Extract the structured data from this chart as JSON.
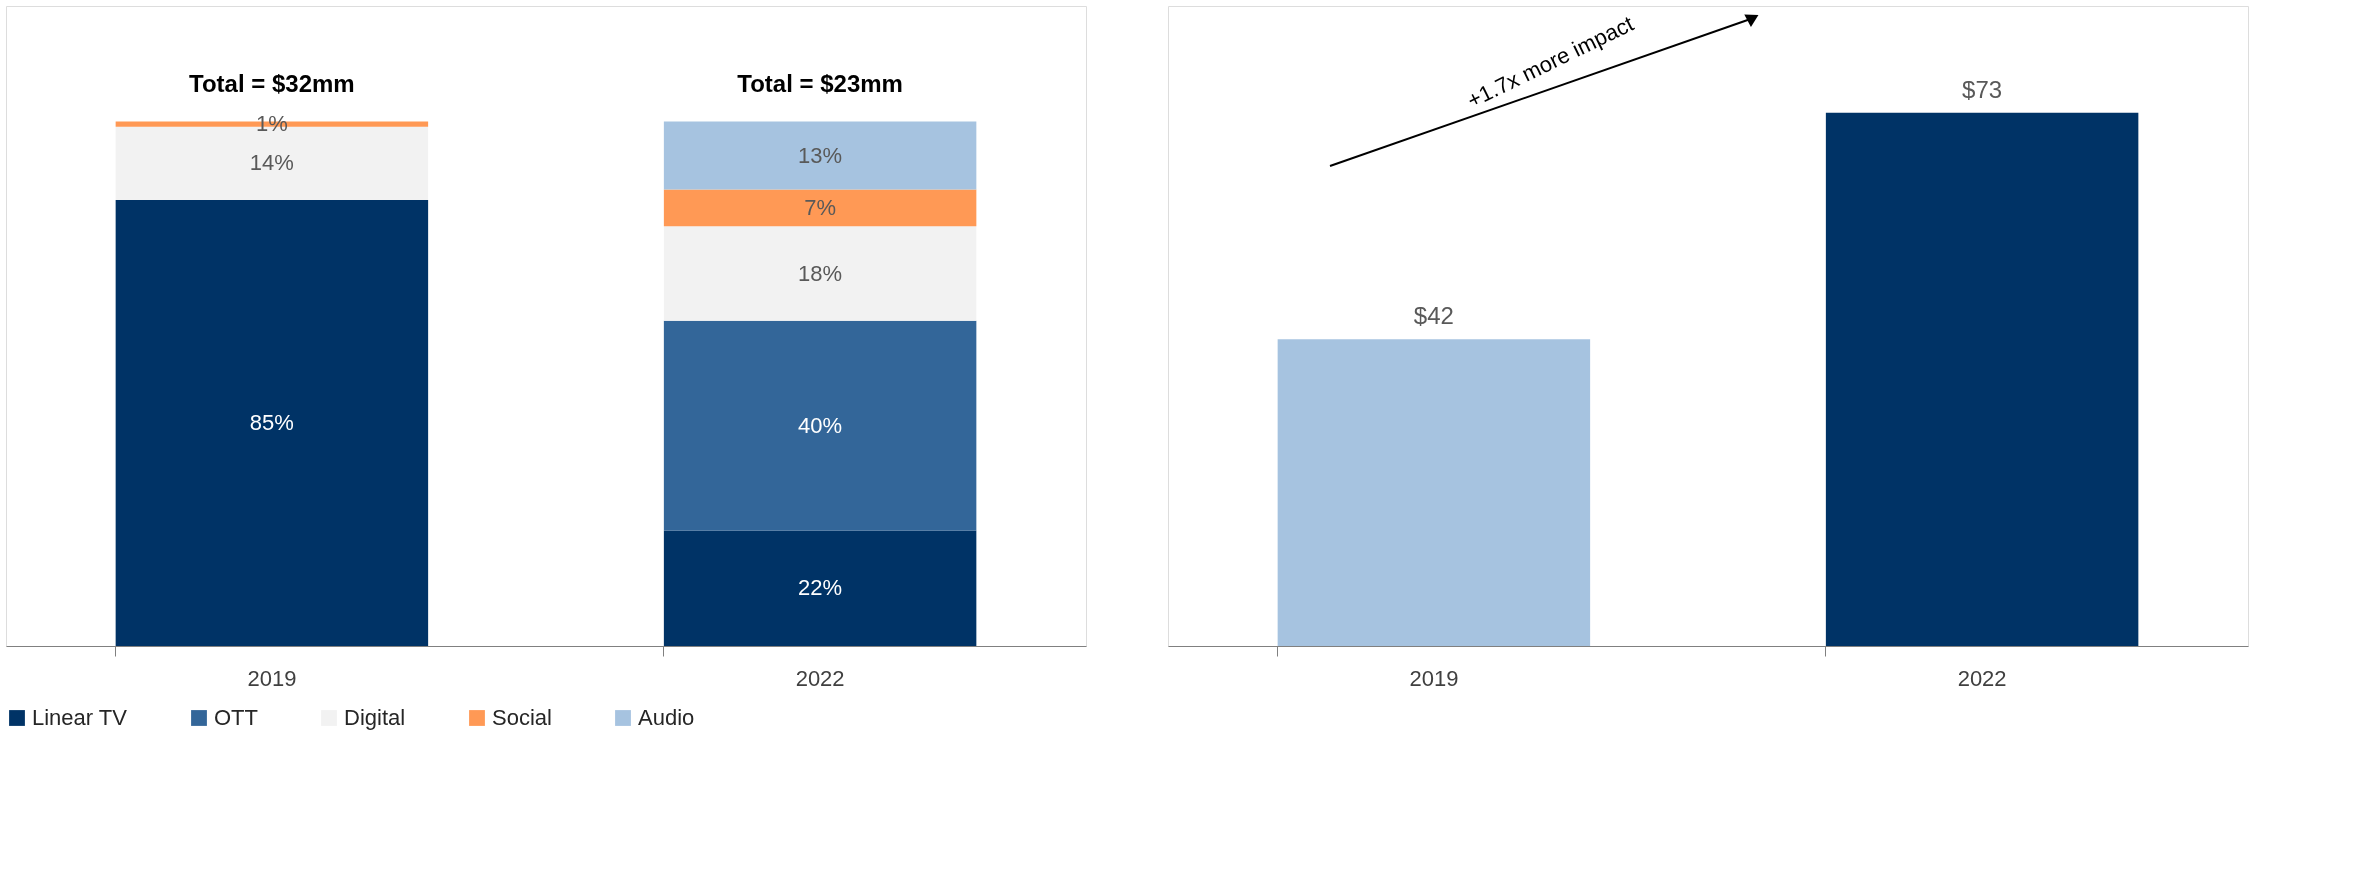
{
  "chart_data": [
    {
      "type": "bar",
      "stacked": true,
      "categories": [
        "2019",
        "2022"
      ],
      "legend": "bottom",
      "series": [
        {
          "name": "Linear TV",
          "color": "#003366",
          "values": [
            85,
            22
          ],
          "value_labels": [
            "85%",
            "22%"
          ]
        },
        {
          "name": "OTT",
          "color": "#336699",
          "values": [
            null,
            40
          ],
          "value_labels": [
            null,
            "40%"
          ]
        },
        {
          "name": "Digital",
          "color": "#f2f2f2",
          "values": [
            14,
            18
          ],
          "value_labels": [
            "14%",
            "18%"
          ]
        },
        {
          "name": "Social",
          "color": "#ff9955",
          "values": [
            1,
            7
          ],
          "value_labels": [
            "1%",
            "7%"
          ]
        },
        {
          "name": "Audio",
          "color": "#a6c3e0",
          "values": [
            null,
            13
          ],
          "value_labels": [
            null,
            "13%"
          ]
        }
      ],
      "annotations": [
        "Total = $32mm",
        "Total = $23mm"
      ]
    },
    {
      "type": "bar",
      "categories": [
        "2019",
        "2022"
      ],
      "values": [
        42,
        73
      ],
      "colors": [
        "#a6c3e0",
        "#003366"
      ],
      "value_labels": [
        "$42",
        "$73"
      ],
      "annotations": [
        "+1.7x more impact"
      ]
    }
  ]
}
